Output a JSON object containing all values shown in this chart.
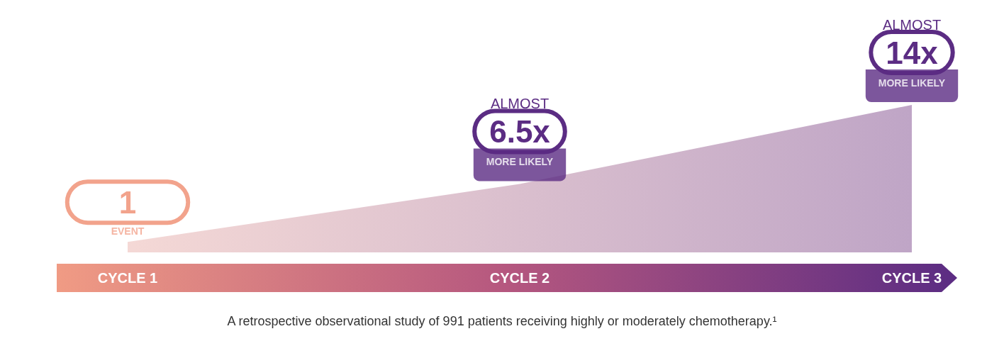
{
  "chart_data": {
    "type": "area",
    "categories": [
      "CYCLE 1",
      "CYCLE 2",
      "CYCLE 3"
    ],
    "series": [
      {
        "color": "#a47fae",
        "values": [
          1,
          6.5,
          14
        ],
        "value_labels": [
          "1",
          "ALMOST 6.5x",
          "ALMOST 14x"
        ]
      }
    ],
    "tick_labels": "x",
    "marker": "none",
    "annotations": [
      {
        "text": "EVENT",
        "x": "CYCLE 1",
        "y": 1
      },
      {
        "text": "MORE LIKELY",
        "x": "CYCLE 2",
        "y": 6.5
      },
      {
        "text": "MORE LIKELY",
        "x": "CYCLE 3",
        "y": 14
      },
      "A retrospective observational study of 991 patients receiving highly or moderately chemotherapy.¹"
    ]
  }
}
